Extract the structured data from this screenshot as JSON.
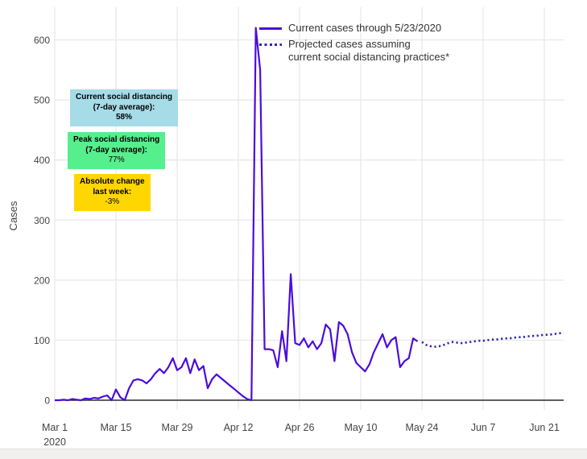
{
  "page": {
    "background": "#ffffff",
    "footer_strip_color": "#f2f0ee"
  },
  "colors": {
    "current_line": "#4B0CDC",
    "projected_line": "#2E26A8",
    "grid": "#e9e9e9",
    "zero_line": "#2b2b2b",
    "axis_text": "#444444",
    "legend_text": "#333333",
    "annotation_blue": "#A6DBE8",
    "annotation_green": "#55EF8E",
    "annotation_yellow": "#FFD600"
  },
  "chart_data": {
    "type": "line",
    "title": "",
    "xlabel": "",
    "ylabel": "Cases",
    "grid": true,
    "legend_position": "inside-top",
    "y_ticks": [
      0,
      100,
      200,
      300,
      400,
      500,
      600
    ],
    "ylim": [
      0,
      645
    ],
    "x_ticks": [
      {
        "day": 0,
        "label": "Mar 1",
        "sublabel": "2020"
      },
      {
        "day": 14,
        "label": "Mar 15"
      },
      {
        "day": 28,
        "label": "Mar 29"
      },
      {
        "day": 42,
        "label": "Apr 12"
      },
      {
        "day": 56,
        "label": "Apr 26"
      },
      {
        "day": 70,
        "label": "May 10"
      },
      {
        "day": 84,
        "label": "May 24"
      },
      {
        "day": 98,
        "label": "Jun 7"
      },
      {
        "day": 112,
        "label": "Jun 21"
      }
    ],
    "series": [
      {
        "name": "Current cases through 5/23/2020",
        "style": "solid",
        "color": "#4B0CDC",
        "start_date": "2020-03-01",
        "end_date": "2020-05-23",
        "start_day": 0,
        "values": [
          0,
          0,
          1,
          0,
          2,
          1,
          0,
          3,
          2,
          4,
          3,
          6,
          8,
          0,
          18,
          5,
          0,
          20,
          33,
          35,
          33,
          28,
          35,
          45,
          52,
          45,
          55,
          70,
          50,
          55,
          70,
          45,
          68,
          50,
          57,
          20,
          35,
          43,
          37,
          31,
          25,
          19,
          13,
          7,
          2,
          0,
          620,
          550,
          85,
          85,
          83,
          55,
          115,
          65,
          210,
          95,
          92,
          103,
          88,
          98,
          85,
          95,
          126,
          118,
          65,
          130,
          124,
          110,
          80,
          62,
          55,
          48,
          60,
          80,
          95,
          110,
          88,
          100,
          105,
          55,
          65,
          70,
          103,
          98
        ]
      },
      {
        "name": "Projected cases assuming current social distancing practices*",
        "style": "dotted",
        "color": "#2E26A8",
        "start_date": "2020-05-24",
        "start_day": 84,
        "values": [
          97,
          92,
          90,
          89,
          90,
          92,
          95,
          97,
          96,
          95,
          96,
          97,
          98,
          99,
          99,
          100,
          101,
          101,
          102,
          103,
          103,
          104,
          105,
          105,
          106,
          107,
          107,
          108,
          109,
          109,
          110,
          111,
          112
        ]
      }
    ]
  },
  "legend": {
    "items": [
      {
        "label": "Current cases through 5/23/2020",
        "line_style": "solid"
      },
      {
        "label_line1": "Projected cases assuming",
        "label_line2": "current social distancing practices*",
        "line_style": "dotted"
      }
    ]
  },
  "annotations": [
    {
      "id": "current-social-distancing",
      "bg": "#A6DBE8",
      "lines": [
        "Current social distancing",
        "(7-day average):",
        "58%"
      ],
      "bold": [
        true,
        true,
        true
      ]
    },
    {
      "id": "peak-social-distancing",
      "bg": "#55EF8E",
      "lines": [
        "Peak social distancing",
        "(7-day average):",
        "77%"
      ],
      "bold": [
        true,
        true,
        false
      ]
    },
    {
      "id": "absolute-change",
      "bg": "#FFD600",
      "lines": [
        "Absolute change",
        "last week:",
        "-3%"
      ],
      "bold": [
        true,
        true,
        false
      ]
    }
  ]
}
